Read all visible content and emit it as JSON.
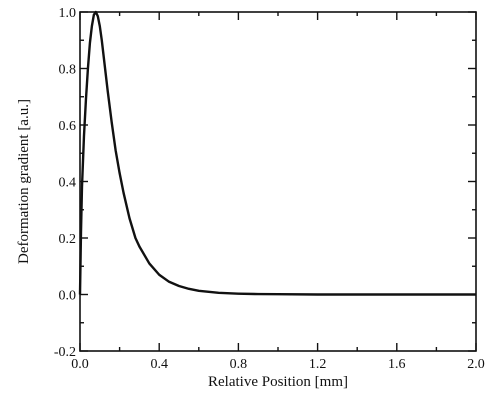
{
  "chart_data": {
    "type": "line",
    "title": "",
    "xlabel": "Relative Position [mm]",
    "ylabel": "Deformation gradient [a.u.]",
    "xlim": [
      0.0,
      2.0
    ],
    "ylim": [
      -0.2,
      1.0
    ],
    "grid": false,
    "x_ticks": [
      "0.0",
      "0.4",
      "0.8",
      "1.2",
      "1.6",
      "2.0"
    ],
    "y_ticks": [
      "-0.2",
      "0.0",
      "0.2",
      "0.4",
      "0.6",
      "0.8",
      "1.0"
    ],
    "series": [
      {
        "color": "#111111",
        "x": [
          0.0,
          0.005,
          0.01,
          0.02,
          0.03,
          0.04,
          0.05,
          0.06,
          0.07,
          0.08,
          0.09,
          0.1,
          0.11,
          0.12,
          0.14,
          0.16,
          0.18,
          0.2,
          0.22,
          0.25,
          0.28,
          0.3,
          0.35,
          0.4,
          0.45,
          0.5,
          0.55,
          0.6,
          0.7,
          0.8,
          0.9,
          1.0,
          1.2,
          1.4,
          1.6,
          1.8,
          2.0
        ],
        "y": [
          0.0,
          0.22,
          0.38,
          0.56,
          0.69,
          0.8,
          0.89,
          0.95,
          0.99,
          1.0,
          0.985,
          0.95,
          0.9,
          0.84,
          0.72,
          0.61,
          0.51,
          0.43,
          0.36,
          0.27,
          0.2,
          0.17,
          0.11,
          0.07,
          0.045,
          0.03,
          0.02,
          0.013,
          0.006,
          0.003,
          0.0015,
          0.001,
          0.0,
          0.0,
          0.0,
          0.0,
          0.0
        ]
      }
    ]
  }
}
